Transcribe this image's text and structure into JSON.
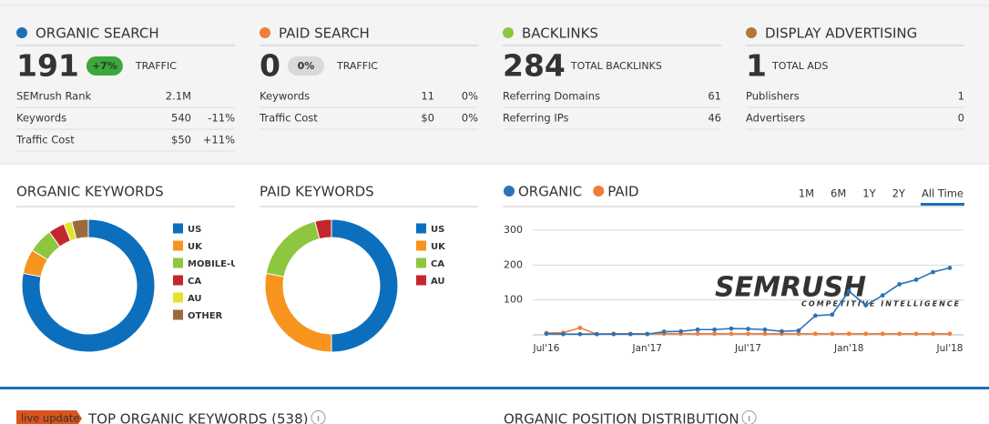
{
  "summary": [
    {
      "title": "ORGANIC SEARCH",
      "color": "#1f6fb7",
      "value": "191",
      "badge": "+7%",
      "badge_color": "#3aa93a",
      "unit": "TRAFFIC",
      "rows": [
        [
          "SEMrush Rank",
          "2.1M",
          ""
        ],
        [
          "Keywords",
          "540",
          "-11%"
        ],
        [
          "Traffic Cost",
          "$50",
          "+11%"
        ]
      ]
    },
    {
      "title": "PAID SEARCH",
      "color": "#f07d3a",
      "value": "0",
      "badge": "0%",
      "badge_color": "#d9d9d9",
      "unit": "TRAFFIC",
      "rows": [
        [
          "Keywords",
          "11",
          "0%"
        ],
        [
          "Traffic Cost",
          "$0",
          "0%"
        ]
      ]
    },
    {
      "title": "BACKLINKS",
      "color": "#8dc63f",
      "value": "284",
      "unit": "TOTAL BACKLINKS",
      "rows": [
        [
          "Referring Domains",
          "61"
        ],
        [
          "Referring IPs",
          "46"
        ]
      ]
    },
    {
      "title": "DISPLAY ADVERTISING",
      "color": "#b07a3a",
      "value": "1",
      "unit": "TOTAL ADS",
      "rows": [
        [
          "Publishers",
          "1"
        ],
        [
          "Advertisers",
          "0"
        ]
      ]
    }
  ],
  "chart_data": [
    {
      "type": "pie",
      "donut": true,
      "title": "ORGANIC KEYWORDS",
      "categories": [
        "US",
        "UK",
        "MOBILE-US",
        "CA",
        "AU",
        "OTHER"
      ],
      "values": [
        78,
        6,
        6,
        4,
        2,
        4
      ],
      "colors": [
        "#0b6fbd",
        "#f7941d",
        "#8dc63f",
        "#c4262e",
        "#e2e42a",
        "#9b6b3d"
      ]
    },
    {
      "type": "pie",
      "donut": true,
      "title": "PAID KEYWORDS",
      "categories": [
        "US",
        "UK",
        "CA",
        "AU"
      ],
      "values": [
        50,
        28,
        18,
        4
      ],
      "colors": [
        "#0b6fbd",
        "#f7941d",
        "#8dc63f",
        "#c4262e"
      ]
    },
    {
      "type": "line",
      "categories": [
        "Jul'16",
        null,
        null,
        null,
        null,
        null,
        "Jan'17",
        null,
        null,
        null,
        null,
        null,
        "Jul'17",
        null,
        null,
        null,
        null,
        null,
        "Jan'18",
        null,
        null,
        null,
        null,
        null,
        "Jul'18"
      ],
      "series": [
        {
          "name": "ORGANIC",
          "color": "#2b73b8",
          "values": [
            3,
            2,
            2,
            2,
            2,
            2,
            2,
            9,
            10,
            15,
            15,
            18,
            17,
            15,
            10,
            12,
            55,
            58,
            125,
            85,
            113,
            145,
            158,
            180,
            192
          ]
        },
        {
          "name": "PAID",
          "color": "#f07d3a",
          "values": [
            5,
            6,
            20,
            2,
            3,
            3,
            3,
            3,
            3,
            3,
            3,
            3,
            3,
            3,
            3,
            3,
            3,
            3,
            3,
            3,
            3,
            3,
            3,
            3,
            3
          ]
        }
      ],
      "ylim": [
        0,
        300
      ],
      "yticks": [
        100,
        200,
        300
      ],
      "grid": true,
      "ranges": [
        "1M",
        "6M",
        "1Y",
        "2Y",
        "All Time"
      ],
      "selected_range": 4,
      "watermark": [
        "SEMRUSH",
        "COMPETITIVE INTELLIGENCE"
      ]
    }
  ],
  "footer": {
    "badge": "live update",
    "left_title": "TOP ORGANIC KEYWORDS (538)",
    "right_title": "ORGANIC POSITION DISTRIBUTION"
  }
}
